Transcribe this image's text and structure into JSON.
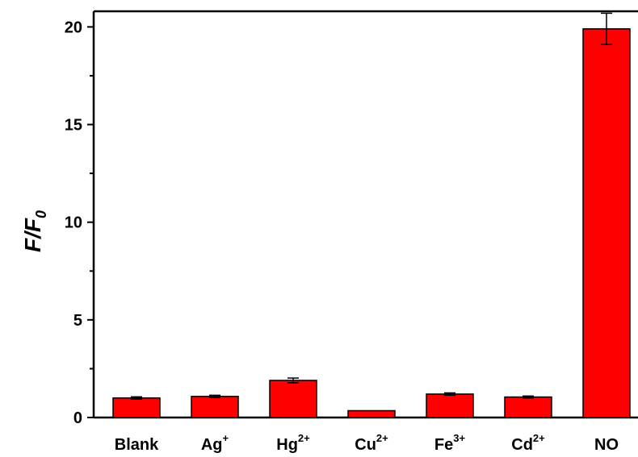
{
  "chart_data": {
    "type": "bar",
    "categories": [
      {
        "base": "Blank",
        "sup": ""
      },
      {
        "base": "Ag",
        "sup": "+"
      },
      {
        "base": "Hg",
        "sup": "2+"
      },
      {
        "base": "Cu",
        "sup": "2+"
      },
      {
        "base": "Fe",
        "sup": "3+"
      },
      {
        "base": "Cd",
        "sup": "2+"
      },
      {
        "base": "NO",
        "sup": ""
      }
    ],
    "values": [
      1.0,
      1.08,
      1.9,
      0.35,
      1.2,
      1.05,
      19.9
    ],
    "errors": [
      0.06,
      0.06,
      0.12,
      0.0,
      0.06,
      0.05,
      0.8
    ],
    "ylabel": {
      "main": "F/F",
      "sub": "0"
    },
    "xlabel": "",
    "title": "",
    "ylim": [
      0,
      20.8
    ],
    "yticks": [
      0,
      5,
      10,
      15,
      20
    ],
    "yminor_step": 2.5,
    "bar_color": "#ff0000",
    "grid": false,
    "legend": "none"
  }
}
